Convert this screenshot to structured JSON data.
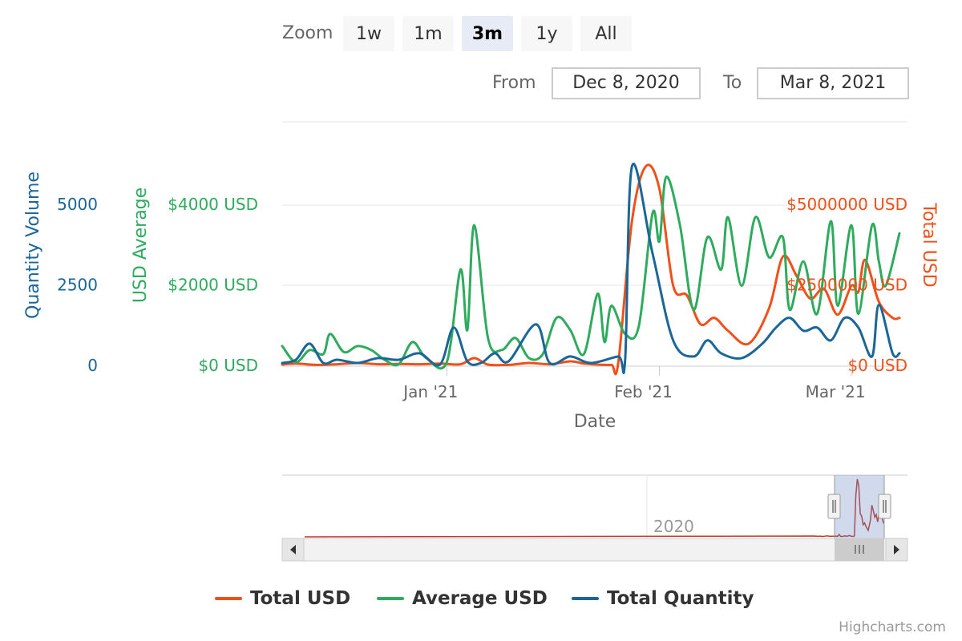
{
  "range_selector": {
    "zoom_label": "Zoom",
    "buttons": [
      "1w",
      "1m",
      "3m",
      "1y",
      "All"
    ],
    "selected": "3m",
    "from_label": "From",
    "from_value": "Dec 8, 2020",
    "to_label": "To",
    "to_value": "Mar 8, 2021"
  },
  "navigator": {
    "year_label": "2020"
  },
  "credits": "Highcharts.com",
  "colors": {
    "total_usd": "#f0501a",
    "average_usd": "#2eab5c",
    "total_quantity": "#1a6698"
  },
  "chart_data": {
    "type": "line",
    "x_label": "Date",
    "x_ticks": [
      "Jan '21",
      "Feb '21",
      "Mar '21"
    ],
    "x_range": [
      "2020-12-08",
      "2021-03-08"
    ],
    "axes": {
      "quantity": {
        "title": "Quantity Volume",
        "ticks": [
          "0",
          "2500",
          "5000"
        ],
        "range": [
          0,
          5000
        ]
      },
      "average": {
        "title": "USD Average",
        "ticks": [
          "$0 USD",
          "$2000 USD",
          "$4000 USD"
        ],
        "range": [
          0,
          4000
        ]
      },
      "total": {
        "title": "Total USD",
        "ticks": [
          "$0 USD",
          "$2500000 USD",
          "$5000000 USD"
        ],
        "range": [
          0,
          5000000
        ]
      }
    },
    "series": [
      {
        "name": "Total USD",
        "axis": "total",
        "points": [
          [
            "2020-12-08",
            50000
          ],
          [
            "2020-12-10",
            80000
          ],
          [
            "2020-12-13",
            40000
          ],
          [
            "2020-12-16",
            60000
          ],
          [
            "2020-12-19",
            100000
          ],
          [
            "2020-12-22",
            60000
          ],
          [
            "2020-12-25",
            70000
          ],
          [
            "2020-12-28",
            60000
          ],
          [
            "2020-12-31",
            80000
          ],
          [
            "2021-01-03",
            60000
          ],
          [
            "2021-01-05",
            250000
          ],
          [
            "2021-01-07",
            50000
          ],
          [
            "2021-01-10",
            40000
          ],
          [
            "2021-01-13",
            100000
          ],
          [
            "2021-01-16",
            60000
          ],
          [
            "2021-01-19",
            150000
          ],
          [
            "2021-01-21",
            80000
          ],
          [
            "2021-01-23",
            50000
          ],
          [
            "2021-01-25",
            40000
          ],
          [
            "2021-01-26",
            100000
          ],
          [
            "2021-01-28",
            4500000
          ],
          [
            "2021-01-30",
            6200000
          ],
          [
            "2021-02-01",
            5500000
          ],
          [
            "2021-02-03",
            2500000
          ],
          [
            "2021-02-05",
            2200000
          ],
          [
            "2021-02-07",
            1300000
          ],
          [
            "2021-02-09",
            1500000
          ],
          [
            "2021-02-11",
            1100000
          ],
          [
            "2021-02-14",
            700000
          ],
          [
            "2021-02-17",
            1800000
          ],
          [
            "2021-02-19",
            3400000
          ],
          [
            "2021-02-21",
            2800000
          ],
          [
            "2021-02-23",
            2100000
          ],
          [
            "2021-02-25",
            2400000
          ],
          [
            "2021-02-27",
            1600000
          ],
          [
            "2021-03-01",
            2500000
          ],
          [
            "2021-03-02",
            2300000
          ],
          [
            "2021-03-03",
            3300000
          ],
          [
            "2021-03-05",
            2000000
          ],
          [
            "2021-03-07",
            1500000
          ],
          [
            "2021-03-08",
            1500000
          ]
        ]
      },
      {
        "name": "Average USD",
        "axis": "average",
        "points": [
          [
            "2020-12-08",
            500
          ],
          [
            "2020-12-10",
            100
          ],
          [
            "2020-12-12",
            400
          ],
          [
            "2020-12-14",
            300
          ],
          [
            "2020-12-15",
            800
          ],
          [
            "2020-12-17",
            350
          ],
          [
            "2020-12-19",
            500
          ],
          [
            "2020-12-21",
            400
          ],
          [
            "2020-12-23",
            150
          ],
          [
            "2020-12-25",
            50
          ],
          [
            "2020-12-27",
            600
          ],
          [
            "2020-12-29",
            200
          ],
          [
            "2021-01-01",
            100
          ],
          [
            "2021-01-03",
            2400
          ],
          [
            "2021-01-04",
            900
          ],
          [
            "2021-01-05",
            3500
          ],
          [
            "2021-01-07",
            700
          ],
          [
            "2021-01-09",
            400
          ],
          [
            "2021-01-11",
            700
          ],
          [
            "2021-01-13",
            200
          ],
          [
            "2021-01-15",
            300
          ],
          [
            "2021-01-17",
            1200
          ],
          [
            "2021-01-19",
            900
          ],
          [
            "2021-01-21",
            300
          ],
          [
            "2021-01-23",
            1800
          ],
          [
            "2021-01-24",
            600
          ],
          [
            "2021-01-25",
            1500
          ],
          [
            "2021-01-27",
            800
          ],
          [
            "2021-01-29",
            1000
          ],
          [
            "2021-01-31",
            3800
          ],
          [
            "2021-02-01",
            3100
          ],
          [
            "2021-02-02",
            4700
          ],
          [
            "2021-02-04",
            3500
          ],
          [
            "2021-02-06",
            1400
          ],
          [
            "2021-02-08",
            3200
          ],
          [
            "2021-02-10",
            2400
          ],
          [
            "2021-02-11",
            3700
          ],
          [
            "2021-02-13",
            2000
          ],
          [
            "2021-02-15",
            3700
          ],
          [
            "2021-02-17",
            2700
          ],
          [
            "2021-02-19",
            3200
          ],
          [
            "2021-02-20",
            1400
          ],
          [
            "2021-02-22",
            2600
          ],
          [
            "2021-02-24",
            1300
          ],
          [
            "2021-02-26",
            3600
          ],
          [
            "2021-02-27",
            1500
          ],
          [
            "2021-03-01",
            3500
          ],
          [
            "2021-03-02",
            1300
          ],
          [
            "2021-03-04",
            3500
          ],
          [
            "2021-03-05",
            2600
          ],
          [
            "2021-03-06",
            2000
          ],
          [
            "2021-03-08",
            3300
          ]
        ]
      },
      {
        "name": "Total Quantity",
        "axis": "quantity",
        "points": [
          [
            "2020-12-08",
            100
          ],
          [
            "2020-12-10",
            200
          ],
          [
            "2020-12-12",
            700
          ],
          [
            "2020-12-14",
            100
          ],
          [
            "2020-12-16",
            200
          ],
          [
            "2020-12-19",
            100
          ],
          [
            "2020-12-22",
            250
          ],
          [
            "2020-12-25",
            200
          ],
          [
            "2020-12-28",
            400
          ],
          [
            "2020-12-31",
            50
          ],
          [
            "2021-01-02",
            1200
          ],
          [
            "2021-01-04",
            150
          ],
          [
            "2021-01-06",
            100
          ],
          [
            "2021-01-08",
            400
          ],
          [
            "2021-01-10",
            150
          ],
          [
            "2021-01-14",
            1300
          ],
          [
            "2021-01-16",
            100
          ],
          [
            "2021-01-19",
            300
          ],
          [
            "2021-01-22",
            100
          ],
          [
            "2021-01-26",
            300
          ],
          [
            "2021-01-27",
            200
          ],
          [
            "2021-01-28",
            6200
          ],
          [
            "2021-01-31",
            3500
          ],
          [
            "2021-02-03",
            800
          ],
          [
            "2021-02-06",
            300
          ],
          [
            "2021-02-08",
            800
          ],
          [
            "2021-02-10",
            400
          ],
          [
            "2021-02-13",
            250
          ],
          [
            "2021-02-16",
            700
          ],
          [
            "2021-02-18",
            1200
          ],
          [
            "2021-02-20",
            1500
          ],
          [
            "2021-02-22",
            1100
          ],
          [
            "2021-02-24",
            1200
          ],
          [
            "2021-02-26",
            800
          ],
          [
            "2021-02-28",
            1500
          ],
          [
            "2021-03-02",
            1200
          ],
          [
            "2021-03-04",
            300
          ],
          [
            "2021-03-05",
            1900
          ],
          [
            "2021-03-07",
            400
          ],
          [
            "2021-03-08",
            400
          ]
        ]
      }
    ]
  }
}
